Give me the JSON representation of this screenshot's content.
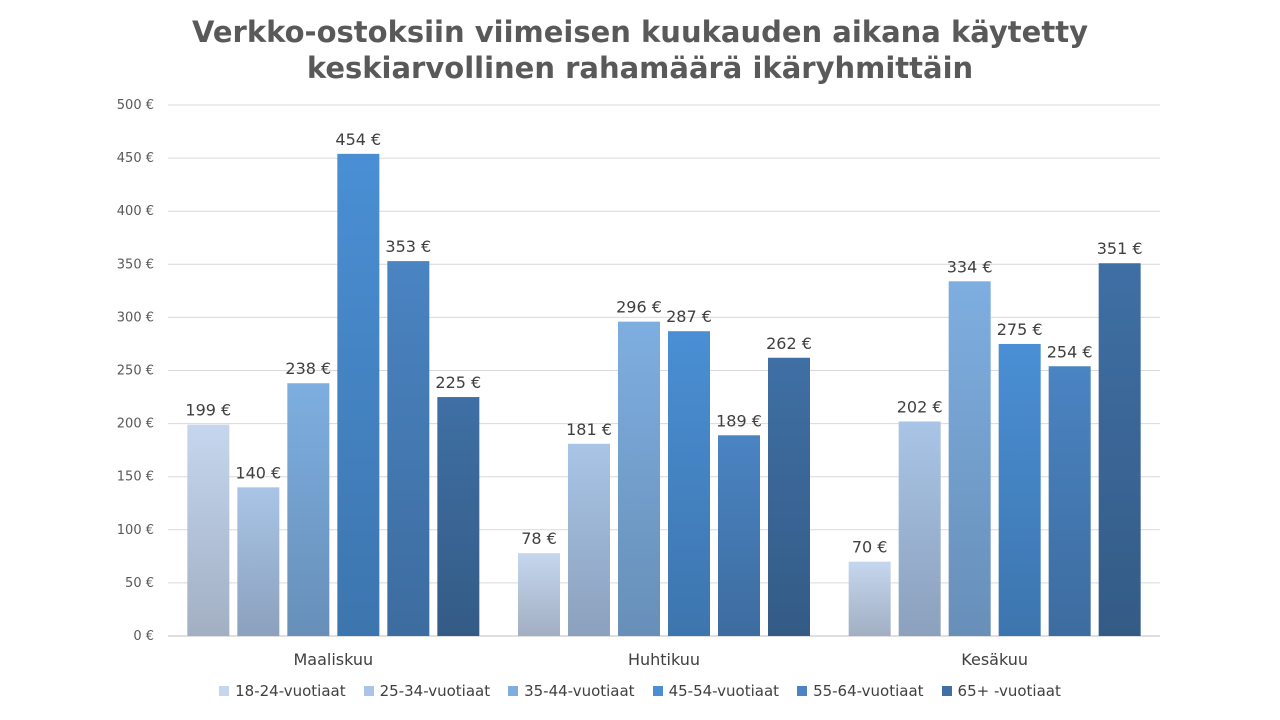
{
  "chart_data": {
    "type": "bar",
    "title_lines": [
      "Verkko-ostoksiin viimeisen kuukauden aikana käytetty",
      "keskiarvollinen rahamäärä ikäryhmittäin"
    ],
    "categories": [
      "Maaliskuu",
      "Huhtikuu",
      "Kesäkuu"
    ],
    "series": [
      {
        "name": "18-24-vuotiaat",
        "color": "#c5d6ee",
        "values": [
          199,
          78,
          70
        ]
      },
      {
        "name": "25-34-vuotiaat",
        "color": "#a9c4e6",
        "values": [
          140,
          181,
          202
        ]
      },
      {
        "name": "35-44-vuotiaat",
        "color": "#7eaee0",
        "values": [
          238,
          296,
          334
        ]
      },
      {
        "name": "45-54-vuotiaat",
        "color": "#4a8fd4",
        "values": [
          454,
          287,
          275
        ]
      },
      {
        "name": "55-64-vuotiaat",
        "color": "#4a84c2",
        "values": [
          353,
          189,
          254
        ]
      },
      {
        "name": "65+ -vuotiaat",
        "color": "#3f6fa4",
        "values": [
          225,
          262,
          351
        ]
      }
    ],
    "ylim": [
      0,
      500
    ],
    "ytick_step": 50,
    "value_suffix": " €",
    "grid": true,
    "legend_position": "bottom",
    "xlabel": "",
    "ylabel": ""
  }
}
